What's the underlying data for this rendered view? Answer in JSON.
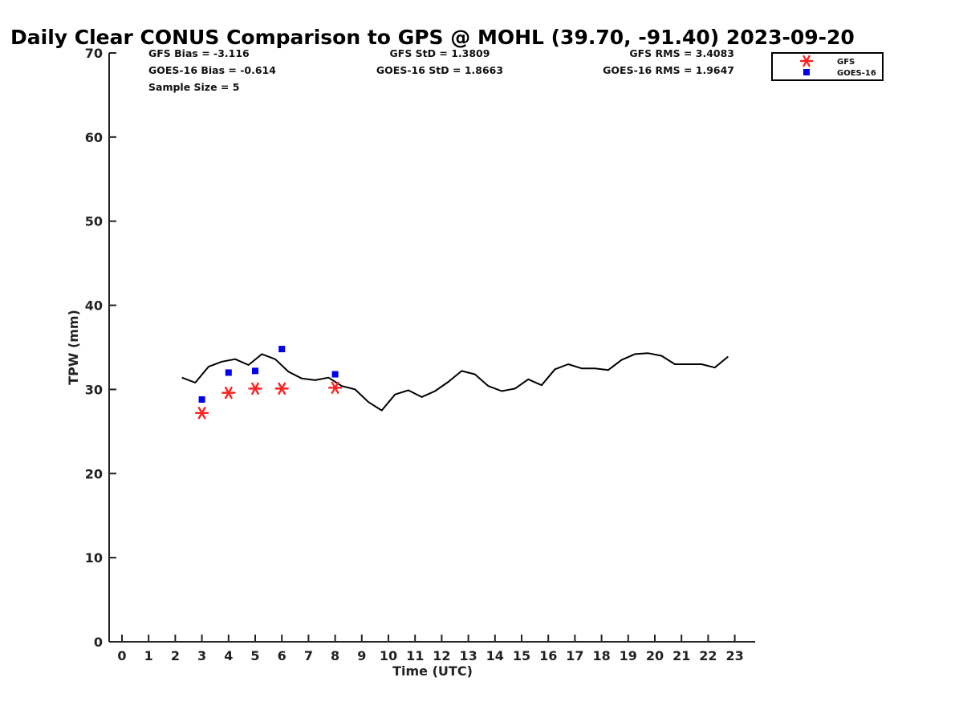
{
  "chart_data": {
    "type": "scatter",
    "title": "Daily Clear CONUS Comparison to GPS @ MOHL (39.70, -91.40) 2023-09-20",
    "xlabel": "Time (UTC)",
    "ylabel": "TPW (mm)",
    "xlim": [
      -0.5,
      23.75
    ],
    "ylim": [
      0,
      70
    ],
    "x_ticks": [
      0,
      1,
      2,
      3,
      4,
      5,
      6,
      7,
      8,
      9,
      10,
      11,
      12,
      13,
      14,
      15,
      16,
      17,
      18,
      19,
      20,
      21,
      22,
      23
    ],
    "y_ticks": [
      0,
      10,
      20,
      30,
      40,
      50,
      60,
      70
    ],
    "grid": false,
    "legend_position": "top-right",
    "stats": [
      [
        "GFS Bias = -3.116",
        "GFS StD = 1.3809",
        "GFS RMS = 3.4083"
      ],
      [
        "GOES-16 Bias = -0.614",
        "GOES-16 StD = 1.8663",
        "GOES-16 RMS = 1.9647"
      ],
      [
        "Sample Size = 5"
      ]
    ],
    "series": [
      {
        "label": "GPS",
        "style": "line",
        "color": "#000000",
        "x": [
          2.25,
          2.75,
          3.25,
          3.75,
          4.25,
          4.75,
          5.25,
          5.75,
          6.25,
          6.75,
          7.25,
          7.75,
          8.25,
          8.75,
          9.25,
          9.75,
          10.25,
          10.75,
          11.25,
          11.75,
          12.25,
          12.75,
          13.25,
          13.75,
          14.25,
          14.75,
          15.25,
          15.75,
          16.25,
          16.75,
          17.25,
          17.75,
          18.25,
          18.75,
          19.25,
          19.75,
          20.25,
          20.75,
          21.25,
          21.75,
          22.25,
          22.75
        ],
        "y": [
          31.4,
          30.8,
          32.7,
          33.3,
          33.6,
          32.9,
          34.2,
          33.6,
          32.1,
          31.3,
          31.1,
          31.4,
          30.4,
          30.0,
          28.5,
          27.5,
          29.4,
          29.9,
          29.1,
          29.8,
          30.9,
          32.2,
          31.8,
          30.4,
          29.8,
          30.1,
          31.2,
          30.5,
          32.4,
          33.0,
          32.5,
          32.5,
          32.3,
          33.5,
          34.2,
          34.3,
          34.0,
          33.0,
          33.0,
          33.0,
          32.6,
          33.9
        ]
      },
      {
        "name": "GFS",
        "style": "asterisk",
        "color": "#ff2222",
        "x": [
          3,
          4,
          5,
          6,
          8
        ],
        "y": [
          27.2,
          29.6,
          30.1,
          30.1,
          30.2
        ]
      },
      {
        "name": "GOES-16",
        "style": "square",
        "color": "#0000ee",
        "x": [
          3,
          4,
          5,
          6,
          8
        ],
        "y": [
          28.8,
          32.0,
          32.2,
          34.8,
          31.8
        ]
      }
    ]
  }
}
